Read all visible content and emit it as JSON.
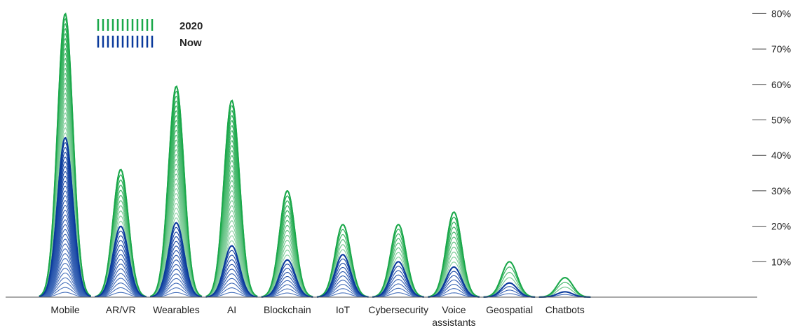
{
  "chart_data": {
    "type": "area",
    "categories": [
      [
        "Mobile"
      ],
      [
        "AR/VR"
      ],
      [
        "Wearables"
      ],
      [
        "AI"
      ],
      [
        "Blockchain"
      ],
      [
        "IoT"
      ],
      [
        "Cybersecurity"
      ],
      [
        "Voice",
        "assistants"
      ],
      [
        "Geospatial"
      ],
      [
        "Chatbots"
      ]
    ],
    "series": [
      {
        "name": "2020",
        "values": [
          80,
          36,
          59.5,
          55.5,
          30,
          20.5,
          20.5,
          24,
          10,
          5.5
        ],
        "color": "#1aa84a"
      },
      {
        "name": "Now",
        "values": [
          45,
          20,
          21,
          14.5,
          10.5,
          12,
          10,
          8.5,
          4,
          1.5
        ],
        "color": "#0a3a9c"
      }
    ],
    "y_ticks": [
      "10%",
      "20%",
      "30%",
      "40%",
      "50%",
      "60%",
      "70%",
      "80%"
    ],
    "ylim": [
      0,
      82
    ],
    "legend_position": "top-left",
    "axis_position": "right",
    "grid": false
  }
}
